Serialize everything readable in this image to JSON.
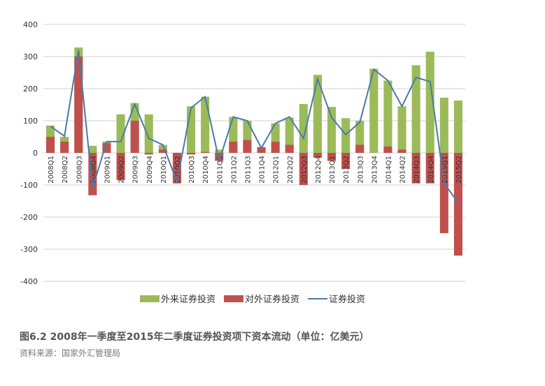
{
  "chart_data": {
    "type": "bar-line",
    "title": "图6.2  2008年一季度至2015年二季度证券投资项下资本流动（单位：亿美元）",
    "source": "资料来源：国家外汇管理局",
    "categories": [
      "2008Q1",
      "2008Q2",
      "2008Q3",
      "2008Q4",
      "2009Q1",
      "2009Q2",
      "2009Q3",
      "2009Q4",
      "2010Q1",
      "2010Q2",
      "2010Q3",
      "2010Q4",
      "2011Q1",
      "2011Q2",
      "2011Q3",
      "2011Q4",
      "2012Q1",
      "2012Q2",
      "2012Q3",
      "2012Q4",
      "2013Q1",
      "2013Q2",
      "2013Q3",
      "2013Q4",
      "2014Q1",
      "2014Q2",
      "2014Q3",
      "2014Q4",
      "2015Q1",
      "2015Q2"
    ],
    "series": [
      {
        "name": "外来证券投资",
        "color": "#9bbb59",
        "kind": "bar",
        "values": [
          85,
          50,
          328,
          22,
          35,
          120,
          155,
          120,
          25,
          -10,
          145,
          175,
          10,
          112,
          100,
          15,
          92,
          110,
          152,
          243,
          143,
          108,
          100,
          262,
          225,
          145,
          273,
          315,
          172,
          163
        ]
      },
      {
        "name": "对外证券投资",
        "color": "#c0504d",
        "kind": "bar",
        "values": [
          50,
          35,
          300,
          -132,
          30,
          -85,
          100,
          -5,
          10,
          -95,
          -5,
          3,
          -25,
          35,
          40,
          18,
          35,
          25,
          -100,
          -15,
          -25,
          -50,
          25,
          0,
          20,
          10,
          -95,
          -95,
          -250,
          -320
        ]
      },
      {
        "name": "证券投资",
        "color": "#4a7ba7",
        "kind": "line",
        "values": [
          83,
          52,
          320,
          -110,
          35,
          35,
          152,
          45,
          25,
          -90,
          140,
          175,
          -25,
          112,
          100,
          15,
          92,
          112,
          45,
          230,
          110,
          57,
          95,
          260,
          225,
          145,
          235,
          222,
          -95,
          -155
        ]
      }
    ],
    "ylim": [
      -400,
      400
    ],
    "yticks": [
      {
        "value": -400,
        "label": "-400"
      },
      {
        "value": -300,
        "label": "-300"
      },
      {
        "value": -200,
        "label": "-200"
      },
      {
        "value": -100,
        "label": "-100"
      },
      0,
      100,
      200,
      300,
      400
    ],
    "grid": true
  }
}
